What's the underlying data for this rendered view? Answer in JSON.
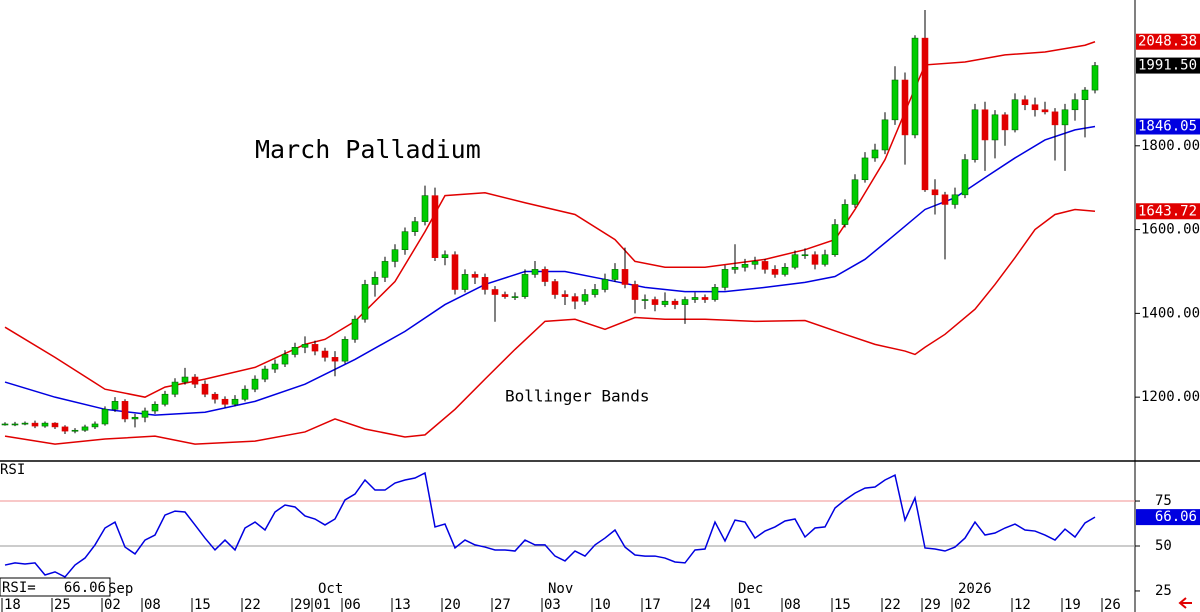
{
  "chart_data": {
    "type": "candlestick",
    "title": "March Palladium",
    "annotation": "Bollinger Bands",
    "up_color": "#00cc00",
    "down_color": "#e00000",
    "candles": [
      [
        1136,
        1140,
        1132,
        1136
      ],
      [
        1136,
        1141,
        1131,
        1136
      ],
      [
        1136,
        1142,
        1133,
        1138
      ],
      [
        1138,
        1144,
        1126,
        1131
      ],
      [
        1131,
        1142,
        1127,
        1138
      ],
      [
        1138,
        1140,
        1124,
        1129
      ],
      [
        1129,
        1133,
        1112,
        1119
      ],
      [
        1119,
        1126,
        1114,
        1121
      ],
      [
        1121,
        1134,
        1117,
        1129
      ],
      [
        1129,
        1142,
        1124,
        1136
      ],
      [
        1136,
        1178,
        1132,
        1171
      ],
      [
        1171,
        1200,
        1165,
        1190
      ],
      [
        1190,
        1195,
        1140,
        1148
      ],
      [
        1148,
        1160,
        1128,
        1152
      ],
      [
        1152,
        1175,
        1140,
        1167
      ],
      [
        1167,
        1190,
        1160,
        1183
      ],
      [
        1183,
        1215,
        1178,
        1207
      ],
      [
        1207,
        1245,
        1200,
        1236
      ],
      [
        1236,
        1270,
        1230,
        1248
      ],
      [
        1248,
        1255,
        1222,
        1231
      ],
      [
        1231,
        1240,
        1200,
        1207
      ],
      [
        1207,
        1212,
        1185,
        1195
      ],
      [
        1195,
        1202,
        1175,
        1183
      ],
      [
        1183,
        1205,
        1178,
        1195
      ],
      [
        1195,
        1228,
        1190,
        1219
      ],
      [
        1219,
        1252,
        1212,
        1243
      ],
      [
        1243,
        1275,
        1236,
        1267
      ],
      [
        1267,
        1290,
        1258,
        1279
      ],
      [
        1279,
        1312,
        1272,
        1302
      ],
      [
        1302,
        1330,
        1295,
        1319
      ],
      [
        1319,
        1345,
        1305,
        1326
      ],
      [
        1326,
        1335,
        1300,
        1310
      ],
      [
        1310,
        1318,
        1285,
        1295
      ],
      [
        1295,
        1310,
        1250,
        1286
      ],
      [
        1286,
        1345,
        1280,
        1338
      ],
      [
        1338,
        1395,
        1330,
        1386
      ],
      [
        1386,
        1480,
        1378,
        1469
      ],
      [
        1469,
        1500,
        1440,
        1486
      ],
      [
        1486,
        1535,
        1475,
        1524
      ],
      [
        1524,
        1565,
        1510,
        1552
      ],
      [
        1552,
        1605,
        1540,
        1595
      ],
      [
        1595,
        1630,
        1585,
        1619
      ],
      [
        1619,
        1705,
        1610,
        1681
      ],
      [
        1681,
        1700,
        1525,
        1533
      ],
      [
        1533,
        1550,
        1515,
        1540
      ],
      [
        1540,
        1548,
        1445,
        1457
      ],
      [
        1457,
        1505,
        1450,
        1493
      ],
      [
        1493,
        1500,
        1470,
        1486
      ],
      [
        1486,
        1495,
        1445,
        1457
      ],
      [
        1457,
        1465,
        1380,
        1445
      ],
      [
        1445,
        1452,
        1435,
        1440
      ],
      [
        1440,
        1450,
        1432,
        1440
      ],
      [
        1440,
        1505,
        1435,
        1493
      ],
      [
        1493,
        1525,
        1485,
        1505
      ],
      [
        1505,
        1512,
        1465,
        1476
      ],
      [
        1476,
        1482,
        1435,
        1445
      ],
      [
        1445,
        1455,
        1420,
        1440
      ],
      [
        1440,
        1448,
        1410,
        1429
      ],
      [
        1429,
        1458,
        1420,
        1445
      ],
      [
        1445,
        1470,
        1438,
        1457
      ],
      [
        1457,
        1495,
        1450,
        1481
      ],
      [
        1481,
        1520,
        1475,
        1505
      ],
      [
        1505,
        1557,
        1460,
        1469
      ],
      [
        1469,
        1478,
        1400,
        1433
      ],
      [
        1433,
        1445,
        1410,
        1433
      ],
      [
        1433,
        1440,
        1405,
        1421
      ],
      [
        1421,
        1450,
        1415,
        1429
      ],
      [
        1429,
        1435,
        1410,
        1421
      ],
      [
        1421,
        1440,
        1375,
        1433
      ],
      [
        1433,
        1450,
        1425,
        1438
      ],
      [
        1438,
        1445,
        1425,
        1433
      ],
      [
        1433,
        1470,
        1428,
        1462
      ],
      [
        1462,
        1515,
        1455,
        1505
      ],
      [
        1505,
        1565,
        1495,
        1510
      ],
      [
        1510,
        1530,
        1500,
        1517
      ],
      [
        1517,
        1535,
        1505,
        1524
      ],
      [
        1524,
        1530,
        1495,
        1505
      ],
      [
        1505,
        1515,
        1485,
        1493
      ],
      [
        1493,
        1520,
        1488,
        1510
      ],
      [
        1510,
        1550,
        1505,
        1540
      ],
      [
        1540,
        1555,
        1530,
        1540
      ],
      [
        1540,
        1548,
        1505,
        1517
      ],
      [
        1517,
        1552,
        1512,
        1540
      ],
      [
        1540,
        1625,
        1535,
        1612
      ],
      [
        1612,
        1672,
        1605,
        1660
      ],
      [
        1660,
        1732,
        1652,
        1719
      ],
      [
        1719,
        1785,
        1712,
        1771
      ],
      [
        1771,
        1805,
        1762,
        1790
      ],
      [
        1790,
        1880,
        1780,
        1862
      ],
      [
        1862,
        1990,
        1850,
        1957
      ],
      [
        1957,
        1975,
        1755,
        1826
      ],
      [
        1826,
        2064,
        1818,
        2057
      ],
      [
        2057,
        2124,
        1690,
        1695
      ],
      [
        1695,
        1720,
        1636,
        1683
      ],
      [
        1683,
        1690,
        1529,
        1660
      ],
      [
        1660,
        1700,
        1650,
        1683
      ],
      [
        1683,
        1780,
        1675,
        1767
      ],
      [
        1767,
        1900,
        1760,
        1886
      ],
      [
        1886,
        1905,
        1740,
        1814
      ],
      [
        1814,
        1885,
        1770,
        1874
      ],
      [
        1874,
        1880,
        1800,
        1838
      ],
      [
        1838,
        1925,
        1832,
        1910
      ],
      [
        1910,
        1920,
        1885,
        1898
      ],
      [
        1898,
        1915,
        1870,
        1886
      ],
      [
        1886,
        1905,
        1875,
        1881
      ],
      [
        1881,
        1890,
        1765,
        1850
      ],
      [
        1850,
        1900,
        1740,
        1886
      ],
      [
        1886,
        1925,
        1860,
        1910
      ],
      [
        1910,
        1940,
        1820,
        1933
      ],
      [
        1933,
        2000,
        1925,
        1991.5
      ]
    ],
    "bands": [
      {
        "color": "#e00000",
        "x": [
          0,
          5,
          10,
          14,
          16,
          20,
          25,
          30,
          32,
          35,
          39,
          42,
          44,
          48,
          52,
          57,
          61,
          63,
          66,
          70,
          76,
          80,
          83,
          85,
          88,
          90,
          92,
          96,
          100,
          104,
          108,
          109
        ],
        "values": [
          1367,
          1295,
          1219,
          1200,
          1224,
          1243,
          1271,
          1326,
          1338,
          1381,
          1476,
          1595,
          1681,
          1688,
          1664,
          1636,
          1576,
          1524,
          1510,
          1510,
          1529,
          1552,
          1576,
          1648,
          1767,
          1881,
          1993,
          2000,
          2017,
          2024,
          2040,
          2048.38
        ]
      },
      {
        "color": "#0000e0",
        "x": [
          0,
          5,
          10,
          15,
          20,
          25,
          30,
          35,
          40,
          44,
          48,
          52,
          56,
          60,
          64,
          68,
          72,
          76,
          80,
          83,
          86,
          89,
          92,
          95,
          98,
          101,
          104,
          107,
          109
        ],
        "values": [
          1236,
          1200,
          1171,
          1157,
          1164,
          1190,
          1231,
          1290,
          1357,
          1421,
          1469,
          1500,
          1500,
          1481,
          1462,
          1452,
          1452,
          1462,
          1474,
          1488,
          1529,
          1588,
          1648,
          1676,
          1724,
          1771,
          1814,
          1838,
          1846.05
        ]
      },
      {
        "color": "#e00000",
        "x": [
          0,
          5,
          10,
          15,
          19,
          25,
          30,
          33,
          36,
          40,
          42,
          45,
          48,
          51,
          54,
          57,
          60,
          63,
          66,
          70,
          75,
          80,
          84,
          87,
          90,
          91,
          92,
          94,
          97,
          99,
          101,
          103,
          105,
          107,
          109
        ],
        "values": [
          1107,
          1088,
          1100,
          1107,
          1088,
          1095,
          1117,
          1148,
          1124,
          1105,
          1110,
          1171,
          1243,
          1314,
          1381,
          1386,
          1362,
          1390,
          1386,
          1386,
          1381,
          1383,
          1350,
          1326,
          1310,
          1302,
          1319,
          1350,
          1410,
          1469,
          1533,
          1600,
          1636,
          1648,
          1643.72
        ]
      }
    ],
    "ylim": [
      1050,
      2148
    ],
    "yticks": [
      {
        "value": 1200,
        "label": "1200.00"
      },
      {
        "value": 1400,
        "label": "1400.00"
      },
      {
        "value": 1600,
        "label": "1600.00"
      },
      {
        "value": 1800,
        "label": "1800.00"
      }
    ],
    "price_markers": [
      {
        "value": 2048.38,
        "label": "2048.38",
        "color": "#e00000"
      },
      {
        "value": 1991.5,
        "label": "1991.50",
        "color": "#000000"
      },
      {
        "value": 1846.05,
        "label": "1846.05",
        "color": "#0000e0"
      },
      {
        "value": 1643.72,
        "label": "1643.72",
        "color": "#e00000"
      }
    ],
    "xlim": [
      -0.5,
      113
    ],
    "xticks": [
      {
        "value": 0,
        "label": "18"
      },
      {
        "value": 5,
        "label": "25"
      },
      {
        "value": 10,
        "label": "02"
      },
      {
        "value": 14,
        "label": "08"
      },
      {
        "value": 19,
        "label": "15"
      },
      {
        "value": 24,
        "label": "22"
      },
      {
        "value": 29,
        "label": "29"
      },
      {
        "value": 31,
        "label": "01"
      },
      {
        "value": 34,
        "label": "06"
      },
      {
        "value": 39,
        "label": "13"
      },
      {
        "value": 44,
        "label": "20"
      },
      {
        "value": 49,
        "label": "27"
      },
      {
        "value": 54,
        "label": "03"
      },
      {
        "value": 59,
        "label": "10"
      },
      {
        "value": 64,
        "label": "17"
      },
      {
        "value": 69,
        "label": "24"
      },
      {
        "value": 73,
        "label": "01"
      },
      {
        "value": 78,
        "label": "08"
      },
      {
        "value": 83,
        "label": "15"
      },
      {
        "value": 88,
        "label": "22"
      },
      {
        "value": 92,
        "label": "29"
      },
      {
        "value": 95,
        "label": "02"
      },
      {
        "value": 101,
        "label": "12"
      },
      {
        "value": 106,
        "label": "19"
      },
      {
        "value": 110,
        "label": "26"
      }
    ],
    "months": [
      {
        "value": 10,
        "label": "Sep"
      },
      {
        "value": 31,
        "label": "Oct"
      },
      {
        "value": 54,
        "label": "Nov"
      },
      {
        "value": 73,
        "label": "Dec"
      },
      {
        "value": 95,
        "label": "2026"
      }
    ],
    "rsi": {
      "label": "RSI",
      "readout": "RSI=",
      "color": "#0000e0",
      "ylim": [
        13.3,
        96.7
      ],
      "yticks": [
        25,
        50,
        75
      ],
      "grid_colors": [
        "none",
        "#999999",
        "#f09090"
      ],
      "marker": {
        "value": 66.06,
        "label": "66.06",
        "color": "#0000e0"
      },
      "values": [
        39.4,
        40.6,
        40,
        40.6,
        33.9,
        35.6,
        32.8,
        39.4,
        43.3,
        50.6,
        60,
        63.3,
        49.4,
        45.6,
        53.3,
        56.1,
        67.2,
        69.4,
        68.9,
        61.7,
        54.4,
        47.8,
        53.3,
        47.8,
        60,
        63.3,
        58.9,
        68.9,
        72.8,
        71.7,
        66.7,
        65,
        61.7,
        65,
        75.6,
        78.9,
        86.7,
        81.1,
        81.1,
        85,
        86.7,
        87.8,
        90.6,
        60.6,
        62.2,
        48.9,
        53.3,
        50.6,
        49.4,
        47.8,
        47.8,
        47.2,
        53.3,
        50.6,
        50.6,
        44.4,
        41.7,
        47.2,
        44.4,
        50.6,
        54.4,
        58.9,
        49.4,
        45,
        44.4,
        44.4,
        43.3,
        41.1,
        40.6,
        47.8,
        48.3,
        63.3,
        52.8,
        64.4,
        63.3,
        54.4,
        58.3,
        60.6,
        63.9,
        65,
        55,
        60,
        60.6,
        71.1,
        75.6,
        79.4,
        82.2,
        82.8,
        86.7,
        89.4,
        64.4,
        76.7,
        48.9,
        48.3,
        47.2,
        49.4,
        54.4,
        63.3,
        56.1,
        57.2,
        60,
        62.2,
        58.9,
        58.3,
        56.1,
        53.3,
        59.4,
        55,
        62.8,
        66.06
      ]
    }
  }
}
